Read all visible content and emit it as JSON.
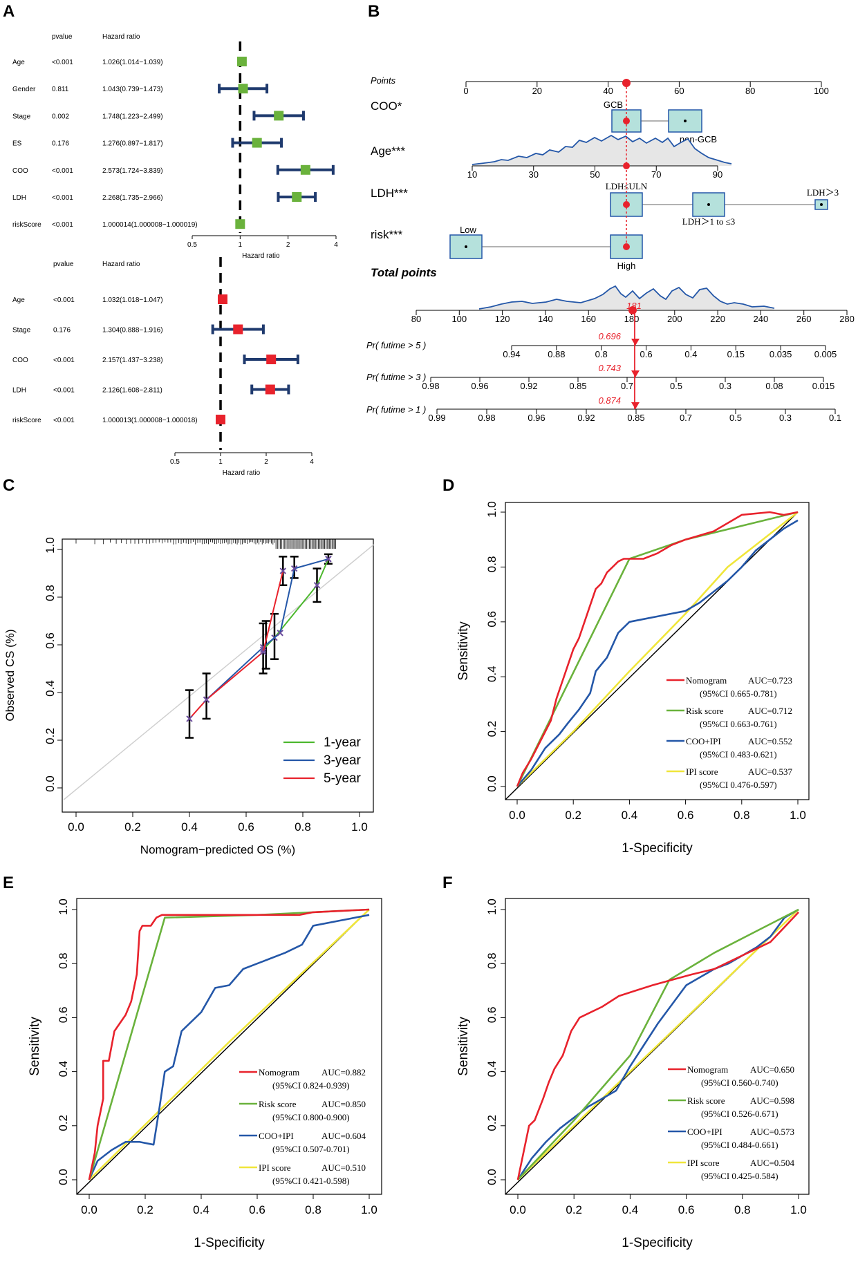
{
  "chart_data": [
    {
      "panel": "A",
      "type": "forest",
      "label": "A",
      "col_pvalue": "pvalue",
      "col_hr": "Hazard ratio",
      "xlabel": "Hazard ratio",
      "ticks": [
        "0.5",
        "1",
        "2",
        "4"
      ],
      "tick_values": [
        0.5,
        1,
        2,
        4
      ],
      "color": "#6ab23c",
      "rows": [
        {
          "name": "Age",
          "pvalue": "<0.001",
          "hr_text": "1.026(1.014−1.039)",
          "hr": 1.026,
          "lo": 1.014,
          "hi": 1.039
        },
        {
          "name": "Gender",
          "pvalue": "0.811",
          "hr_text": "1.043(0.739−1.473)",
          "hr": 1.043,
          "lo": 0.739,
          "hi": 1.473
        },
        {
          "name": "Stage",
          "pvalue": "0.002",
          "hr_text": "1.748(1.223−2.499)",
          "hr": 1.748,
          "lo": 1.223,
          "hi": 2.499
        },
        {
          "name": "ES",
          "pvalue": "0.176",
          "hr_text": "1.276(0.897−1.817)",
          "hr": 1.276,
          "lo": 0.897,
          "hi": 1.817
        },
        {
          "name": "COO",
          "pvalue": "<0.001",
          "hr_text": "2.573(1.724−3.839)",
          "hr": 2.573,
          "lo": 1.724,
          "hi": 3.839
        },
        {
          "name": "LDH",
          "pvalue": "<0.001",
          "hr_text": "2.268(1.735−2.966)",
          "hr": 2.268,
          "lo": 1.735,
          "hi": 2.966
        },
        {
          "name": "riskScore",
          "pvalue": "<0.001",
          "hr_text": "1.000014(1.000008−1.000019)",
          "hr": 1.000014,
          "lo": 1.000008,
          "hi": 1.000019
        }
      ]
    },
    {
      "panel": "A2",
      "type": "forest",
      "col_pvalue": "pvalue",
      "col_hr": "Hazard ratio",
      "xlabel": "Hazard ratio",
      "ticks": [
        "0.5",
        "1",
        "2",
        "4"
      ],
      "tick_values": [
        0.5,
        1,
        2,
        4
      ],
      "color": "#e8222c",
      "rows": [
        {
          "name": "Age",
          "pvalue": "<0.001",
          "hr_text": "1.032(1.018−1.047)",
          "hr": 1.032,
          "lo": 1.018,
          "hi": 1.047
        },
        {
          "name": "Stage",
          "pvalue": "0.176",
          "hr_text": "1.304(0.888−1.916)",
          "hr": 1.304,
          "lo": 0.888,
          "hi": 1.916
        },
        {
          "name": "COO",
          "pvalue": "<0.001",
          "hr_text": "2.157(1.437−3.238)",
          "hr": 2.157,
          "lo": 1.437,
          "hi": 3.238
        },
        {
          "name": "LDH",
          "pvalue": "<0.001",
          "hr_text": "2.126(1.608−2.811)",
          "hr": 2.126,
          "lo": 1.608,
          "hi": 2.811
        },
        {
          "name": "riskScore",
          "pvalue": "<0.001",
          "hr_text": "1.000013(1.000008−1.000018)",
          "hr": 1.000013,
          "lo": 1.000008,
          "hi": 1.000018
        }
      ]
    },
    {
      "panel": "B",
      "type": "nomogram",
      "label": "B",
      "points_label": "Points",
      "points_ticks": [
        "0",
        "20",
        "40",
        "60",
        "80",
        "100"
      ],
      "coo_label": "COO*",
      "coo_levels": [
        "GCB",
        "non-GCB"
      ],
      "age_label": "Age***",
      "age_ticks": [
        "10",
        "30",
        "50",
        "70",
        "90"
      ],
      "ldh_label": "LDH***",
      "ldh_levels": [
        "LDH≤ULN",
        "LDH＞1 to ≤3",
        "LDH＞3"
      ],
      "risk_label": "risk***",
      "risk_levels": [
        "Low",
        "High"
      ],
      "total_label": "Total points",
      "total_ticks": [
        "80",
        "100",
        "120",
        "140",
        "160",
        "180",
        "200",
        "220",
        "240",
        "260",
        "280"
      ],
      "total_value": "181",
      "prob_rows": [
        {
          "label": "Pr( futime > 5 )",
          "value": "0.696",
          "ticks": [
            "0.94",
            "0.88",
            "0.8",
            "0.6",
            "0.4",
            "0.15",
            "0.035",
            "0.005"
          ]
        },
        {
          "label": "Pr( futime > 3 )",
          "value": "0.743",
          "ticks": [
            "0.98",
            "0.96",
            "0.92",
            "0.85",
            "0.7",
            "0.5",
            "0.3",
            "0.08",
            "0.015"
          ]
        },
        {
          "label": "Pr( futime > 1 )",
          "value": "0.874",
          "ticks": [
            "0.99",
            "0.98",
            "0.96",
            "0.92",
            "0.85",
            "0.7",
            "0.5",
            "0.3",
            "0.1"
          ]
        }
      ]
    },
    {
      "panel": "C",
      "type": "line",
      "label": "C",
      "xlabel": "Nomogram−predicted OS (%)",
      "ylabel": "Observed CS (%)",
      "xlim": [
        0,
        1
      ],
      "ylim": [
        0,
        1
      ],
      "xticks": [
        "0.0",
        "0.2",
        "0.4",
        "0.6",
        "0.8",
        "1.0"
      ],
      "yticks": [
        "0.0",
        "0.2",
        "0.4",
        "0.6",
        "0.8",
        "1.0"
      ],
      "series": [
        {
          "name": "1-year",
          "color": "#4cb82e",
          "x": [
            0.66,
            0.7,
            0.85,
            0.89
          ],
          "y": [
            0.58,
            0.63,
            0.85,
            0.96
          ]
        },
        {
          "name": "3-year",
          "color": "#2457a8",
          "x": [
            0.46,
            0.66,
            0.72,
            0.77,
            0.89
          ],
          "y": [
            0.37,
            0.59,
            0.65,
            0.92,
            0.96
          ]
        },
        {
          "name": "5-year",
          "color": "#e8222c",
          "x": [
            0.4,
            0.46,
            0.66,
            0.73
          ],
          "y": [
            0.29,
            0.37,
            0.57,
            0.91
          ]
        }
      ],
      "errorbars": [
        {
          "x": 0.4,
          "y": 0.29,
          "lo": 0.21,
          "hi": 0.41
        },
        {
          "x": 0.46,
          "y": 0.37,
          "lo": 0.29,
          "hi": 0.48
        },
        {
          "x": 0.66,
          "y": 0.58,
          "lo": 0.48,
          "hi": 0.69
        },
        {
          "x": 0.67,
          "y": 0.59,
          "lo": 0.5,
          "hi": 0.7
        },
        {
          "x": 0.7,
          "y": 0.63,
          "lo": 0.54,
          "hi": 0.73
        },
        {
          "x": 0.73,
          "y": 0.91,
          "lo": 0.85,
          "hi": 0.97
        },
        {
          "x": 0.77,
          "y": 0.92,
          "lo": 0.88,
          "hi": 0.97
        },
        {
          "x": 0.85,
          "y": 0.85,
          "lo": 0.78,
          "hi": 0.92
        },
        {
          "x": 0.89,
          "y": 0.96,
          "lo": 0.94,
          "hi": 0.98
        }
      ]
    },
    {
      "panel": "D",
      "type": "roc",
      "label": "D",
      "xlabel": "1-Specificity",
      "ylabel": "Sensitivity",
      "xticks": [
        "0.0",
        "0.2",
        "0.4",
        "0.6",
        "0.8",
        "1.0"
      ],
      "yticks": [
        "0.0",
        "0.2",
        "0.4",
        "0.6",
        "0.8",
        "1.0"
      ],
      "series": [
        {
          "name": "Nomogram",
          "auc": "AUC=0.723",
          "ci": "(95%CI 0.665-0.781)",
          "color": "#e8222c",
          "x": [
            0,
            0.02,
            0.05,
            0.08,
            0.1,
            0.12,
            0.14,
            0.16,
            0.18,
            0.2,
            0.22,
            0.24,
            0.26,
            0.28,
            0.3,
            0.32,
            0.34,
            0.36,
            0.38,
            0.4,
            0.45,
            0.5,
            0.55,
            0.6,
            0.7,
            0.8,
            0.9,
            0.95,
            1.0
          ],
          "y": [
            0,
            0.05,
            0.1,
            0.16,
            0.2,
            0.24,
            0.32,
            0.38,
            0.44,
            0.5,
            0.54,
            0.6,
            0.66,
            0.72,
            0.74,
            0.78,
            0.8,
            0.82,
            0.83,
            0.83,
            0.83,
            0.85,
            0.88,
            0.9,
            0.93,
            0.99,
            1.0,
            0.99,
            1.0
          ]
        },
        {
          "name": "Risk score",
          "auc": "AUC=0.712",
          "ci": "(95%CI 0.663-0.761)",
          "color": "#6ab23c",
          "x": [
            0,
            0.4,
            0.6,
            0.8,
            1.0
          ],
          "y": [
            0,
            0.83,
            0.9,
            0.95,
            1.0
          ]
        },
        {
          "name": "COO+IPI",
          "auc": "AUC=0.552",
          "ci": "(95%CI 0.483-0.621)",
          "color": "#2457a8",
          "x": [
            0,
            0.05,
            0.1,
            0.15,
            0.18,
            0.22,
            0.26,
            0.28,
            0.32,
            0.36,
            0.4,
            0.45,
            0.5,
            0.55,
            0.6,
            0.65,
            0.7,
            0.75,
            0.8,
            0.85,
            0.9,
            0.95,
            1.0
          ],
          "y": [
            0,
            0.06,
            0.14,
            0.19,
            0.23,
            0.28,
            0.34,
            0.42,
            0.47,
            0.56,
            0.6,
            0.61,
            0.62,
            0.63,
            0.64,
            0.67,
            0.71,
            0.75,
            0.8,
            0.86,
            0.9,
            0.94,
            0.97
          ]
        },
        {
          "name": "IPI score",
          "auc": "AUC=0.537",
          "ci": "(95%CI 0.476-0.597)",
          "color": "#f0e63a",
          "x": [
            0,
            0.2,
            0.4,
            0.6,
            0.75,
            0.85,
            1.0
          ],
          "y": [
            0,
            0.2,
            0.42,
            0.63,
            0.8,
            0.88,
            1.0
          ]
        }
      ]
    },
    {
      "panel": "E",
      "type": "roc",
      "label": "E",
      "xlabel": "1-Specificity",
      "ylabel": "Sensitivity",
      "xticks": [
        "0.0",
        "0.2",
        "0.4",
        "0.6",
        "0.8",
        "1.0"
      ],
      "yticks": [
        "0.0",
        "0.2",
        "0.4",
        "0.6",
        "0.8",
        "1.0"
      ],
      "series": [
        {
          "name": "Nomogram",
          "auc": "AUC=0.882",
          "ci": "(95%CI 0.824-0.939)",
          "color": "#e8222c",
          "x": [
            0,
            0.02,
            0.03,
            0.05,
            0.05,
            0.07,
            0.09,
            0.11,
            0.13,
            0.15,
            0.17,
            0.18,
            0.19,
            0.22,
            0.24,
            0.26,
            0.5,
            0.75,
            0.8,
            1.0
          ],
          "y": [
            0,
            0.1,
            0.2,
            0.3,
            0.44,
            0.44,
            0.55,
            0.58,
            0.61,
            0.66,
            0.76,
            0.92,
            0.94,
            0.94,
            0.97,
            0.98,
            0.98,
            0.98,
            0.99,
            1.0
          ]
        },
        {
          "name": "Risk score",
          "auc": "AUC=0.850",
          "ci": "(95%CI 0.800-0.900)",
          "color": "#6ab23c",
          "x": [
            0,
            0.27,
            0.6,
            1.0
          ],
          "y": [
            0,
            0.97,
            0.98,
            1.0
          ]
        },
        {
          "name": "COO+IPI",
          "auc": "AUC=0.604",
          "ci": "(95%CI 0.507-0.701)",
          "color": "#2457a8",
          "x": [
            0,
            0.03,
            0.08,
            0.13,
            0.18,
            0.23,
            0.25,
            0.27,
            0.3,
            0.33,
            0.36,
            0.4,
            0.45,
            0.5,
            0.55,
            0.6,
            0.65,
            0.7,
            0.76,
            0.8,
            0.9,
            1.0
          ],
          "y": [
            0,
            0.07,
            0.11,
            0.14,
            0.14,
            0.13,
            0.26,
            0.4,
            0.42,
            0.55,
            0.58,
            0.62,
            0.71,
            0.72,
            0.78,
            0.8,
            0.82,
            0.84,
            0.87,
            0.94,
            0.96,
            0.98
          ]
        },
        {
          "name": "IPI score",
          "auc": "AUC=0.510",
          "ci": "(95%CI 0.421-0.598)",
          "color": "#f0e63a",
          "x": [
            0,
            0.5,
            1.0
          ],
          "y": [
            0,
            0.51,
            1.0
          ]
        }
      ]
    },
    {
      "panel": "F",
      "type": "roc",
      "label": "F",
      "xlabel": "1-Specificity",
      "ylabel": "Sensitivity",
      "xticks": [
        "0.0",
        "0.2",
        "0.4",
        "0.6",
        "0.8",
        "1.0"
      ],
      "yticks": [
        "0.0",
        "0.2",
        "0.4",
        "0.6",
        "0.8",
        "1.0"
      ],
      "series": [
        {
          "name": "Nomogram",
          "auc": "AUC=0.650",
          "ci": "(95%CI 0.560-0.740)",
          "color": "#e8222c",
          "x": [
            0,
            0.02,
            0.04,
            0.06,
            0.09,
            0.11,
            0.13,
            0.16,
            0.19,
            0.22,
            0.26,
            0.3,
            0.36,
            0.42,
            0.48,
            0.55,
            0.62,
            0.7,
            0.8,
            0.9,
            1.0
          ],
          "y": [
            0,
            0.1,
            0.2,
            0.22,
            0.3,
            0.36,
            0.41,
            0.46,
            0.55,
            0.6,
            0.62,
            0.64,
            0.68,
            0.7,
            0.72,
            0.74,
            0.76,
            0.78,
            0.83,
            0.88,
            0.99
          ]
        },
        {
          "name": "Risk score",
          "auc": "AUC=0.598",
          "ci": "(95%CI 0.526-0.671)",
          "color": "#6ab23c",
          "x": [
            0,
            0.2,
            0.4,
            0.54,
            0.7,
            0.85,
            1.0
          ],
          "y": [
            0,
            0.22,
            0.46,
            0.74,
            0.84,
            0.92,
            1.0
          ]
        },
        {
          "name": "COO+IPI",
          "auc": "AUC=0.573",
          "ci": "(95%CI 0.484-0.661)",
          "color": "#2457a8",
          "x": [
            0,
            0.05,
            0.1,
            0.15,
            0.2,
            0.25,
            0.3,
            0.35,
            0.4,
            0.45,
            0.5,
            0.55,
            0.6,
            0.65,
            0.7,
            0.75,
            0.8,
            0.85,
            0.9,
            0.95,
            1.0
          ],
          "y": [
            0,
            0.08,
            0.14,
            0.19,
            0.23,
            0.27,
            0.3,
            0.33,
            0.42,
            0.5,
            0.58,
            0.65,
            0.72,
            0.75,
            0.78,
            0.8,
            0.83,
            0.86,
            0.9,
            0.97,
            1.0
          ]
        },
        {
          "name": "IPI score",
          "auc": "AUC=0.504",
          "ci": "(95%CI 0.425-0.584)",
          "color": "#f0e63a",
          "x": [
            0,
            0.5,
            1.0
          ],
          "y": [
            0,
            0.5,
            1.0
          ]
        }
      ]
    }
  ]
}
